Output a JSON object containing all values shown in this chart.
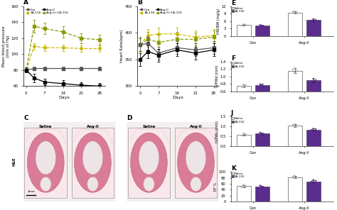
{
  "panel_A": {
    "title": "A",
    "xlabel": "Days",
    "ylabel": "Mean blood pressure\n(mm of Hg)",
    "days": [
      0,
      3,
      7,
      14,
      21,
      28
    ],
    "con": [
      80,
      82,
      82,
      82,
      82,
      82
    ],
    "con_err": [
      2,
      2,
      2,
      2,
      2,
      2
    ],
    "con_1A116": [
      80,
      110,
      108,
      108,
      107,
      107
    ],
    "con_1A116_err": [
      3,
      4,
      4,
      4,
      4,
      4
    ],
    "angII": [
      80,
      70,
      65,
      63,
      61,
      60
    ],
    "angII_err": [
      3,
      5,
      4,
      4,
      4,
      4
    ],
    "angII_1A116": [
      80,
      135,
      132,
      128,
      120,
      118
    ],
    "angII_1A116_err": [
      3,
      8,
      7,
      7,
      6,
      6
    ],
    "ylim": [
      60,
      160
    ],
    "yticks": [
      60,
      80,
      100,
      120,
      140,
      160
    ]
  },
  "panel_B": {
    "title": "B",
    "xlabel": "Days",
    "ylabel": "Heart Rate(bpm)",
    "days": [
      0,
      3,
      7,
      14,
      21,
      28
    ],
    "con": [
      378,
      380,
      362,
      372,
      368,
      372
    ],
    "con_err": [
      12,
      12,
      12,
      12,
      12,
      12
    ],
    "con_1A116": [
      378,
      395,
      398,
      398,
      392,
      395
    ],
    "con_1A116_err": [
      12,
      12,
      12,
      12,
      12,
      12
    ],
    "angII": [
      350,
      365,
      358,
      368,
      362,
      368
    ],
    "angII_err": [
      12,
      12,
      12,
      12,
      12,
      12
    ],
    "angII_1A116": [
      378,
      388,
      382,
      388,
      388,
      392
    ],
    "angII_1A116_err": [
      14,
      14,
      14,
      14,
      12,
      12
    ],
    "ylim": [
      300,
      450
    ],
    "yticks": [
      300,
      350,
      400,
      450
    ]
  },
  "panel_E": {
    "title": "E",
    "ylabel": "HW/BW (mg/g)",
    "ylim": [
      0,
      12
    ],
    "yticks": [
      0,
      3,
      6,
      9,
      12
    ],
    "con_saline": 4.5,
    "con_saline_err": 0.3,
    "con_1A116": 4.3,
    "con_1A116_err": 0.3,
    "angII_saline": 9.5,
    "angII_saline_err": 0.5,
    "angII_1A116": 6.5,
    "angII_1A116_err": 0.5,
    "saline_dots": [
      4.2,
      4.5,
      4.8,
      4.6,
      4.4
    ],
    "drug_dots_con": [
      4.0,
      4.2,
      4.5,
      4.3,
      4.1
    ],
    "saline_dots_ang": [
      9.0,
      9.5,
      10.0,
      9.8,
      9.3
    ],
    "drug_dots_ang": [
      6.0,
      6.3,
      6.8,
      6.5,
      6.2
    ]
  },
  "panel_F": {
    "title": "F",
    "ylabel": "LVPWd (mm)",
    "ylim": [
      0.6,
      1.4
    ],
    "yticks": [
      0.6,
      0.8,
      1.0,
      1.2,
      1.4
    ],
    "con_saline": 0.75,
    "con_saline_err": 0.04,
    "con_1A116": 0.76,
    "con_1A116_err": 0.04,
    "angII_saline": 1.15,
    "angII_saline_err": 0.07,
    "angII_1A116": 0.9,
    "angII_1A116_err": 0.05,
    "saline_dots": [
      0.72,
      0.75,
      0.78,
      0.76,
      0.74
    ],
    "drug_dots_con": [
      0.73,
      0.76,
      0.79,
      0.77,
      0.74
    ],
    "saline_dots_ang": [
      1.08,
      1.15,
      1.22,
      1.18,
      1.12
    ],
    "drug_dots_ang": [
      0.85,
      0.88,
      0.93,
      0.9,
      0.87
    ]
  },
  "panel_J": {
    "title": "J",
    "ylabel": "LVPWs (mm)",
    "ylim": [
      0.0,
      1.5
    ],
    "yticks": [
      0.0,
      0.5,
      1.0,
      1.5
    ],
    "con_saline": 0.6,
    "con_saline_err": 0.05,
    "con_1A116": 0.65,
    "con_1A116_err": 0.05,
    "angII_saline": 1.05,
    "angII_saline_err": 0.06,
    "angII_1A116": 0.85,
    "angII_1A116_err": 0.05,
    "saline_dots": [
      0.55,
      0.6,
      0.65,
      0.62,
      0.58
    ],
    "drug_dots_con": [
      0.6,
      0.65,
      0.7,
      0.67,
      0.63
    ],
    "saline_dots_ang": [
      0.98,
      1.05,
      1.12,
      1.08,
      1.02
    ],
    "drug_dots_ang": [
      0.8,
      0.84,
      0.9,
      0.87,
      0.82
    ]
  },
  "panel_K": {
    "title": "K",
    "ylabel": "EF %",
    "ylim": [
      0,
      100
    ],
    "yticks": [
      0,
      20,
      40,
      60,
      80,
      100
    ],
    "con_saline": 52,
    "con_saline_err": 3,
    "con_1A116": 50,
    "con_1A116_err": 3,
    "angII_saline": 82,
    "angII_saline_err": 4,
    "angII_1A116": 68,
    "angII_1A116_err": 4,
    "saline_dots": [
      48,
      52,
      56,
      54,
      50
    ],
    "drug_dots_con": [
      46,
      50,
      54,
      52,
      48
    ],
    "saline_dots_ang": [
      78,
      82,
      87,
      84,
      80
    ],
    "drug_dots_ang": [
      64,
      68,
      73,
      70,
      66
    ]
  },
  "colors": {
    "con": "#555555",
    "angII": "#222222",
    "con_1A116_line": "#c8b800",
    "angII_1A116_line": "#8a9a00",
    "saline_bar": "#ffffff",
    "drug_bar": "#5b2d8e",
    "saline_dot": "#aaaaaa",
    "drug_dot": "#5b2d8e",
    "bar_edge": "#333333"
  }
}
